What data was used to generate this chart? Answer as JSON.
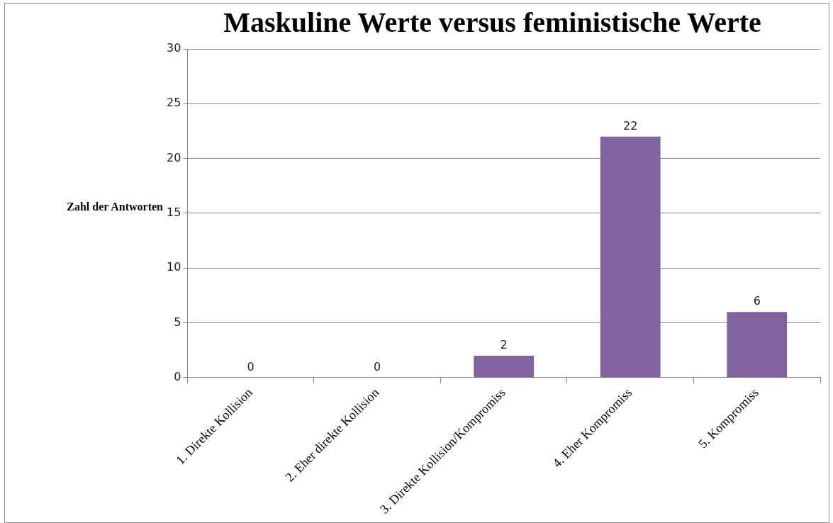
{
  "chart_data": {
    "type": "bar",
    "title": "Maskuline Werte versus feministische Werte",
    "ylabel": "Zahl der Antworten",
    "categories": [
      "1. Direkte Kollision",
      "2. Eher direkte Kollision",
      "3. Direkte Kollision/Kompromiss",
      "4. Eher Kompromiss",
      "5. Kompromiss"
    ],
    "values": [
      0,
      0,
      2,
      22,
      6
    ],
    "color": "#8064a2",
    "ylim": [
      0,
      30
    ],
    "yticks": [
      0,
      5,
      10,
      15,
      20,
      25,
      30
    ],
    "grid": "y",
    "legend": false,
    "data_labels": true
  }
}
